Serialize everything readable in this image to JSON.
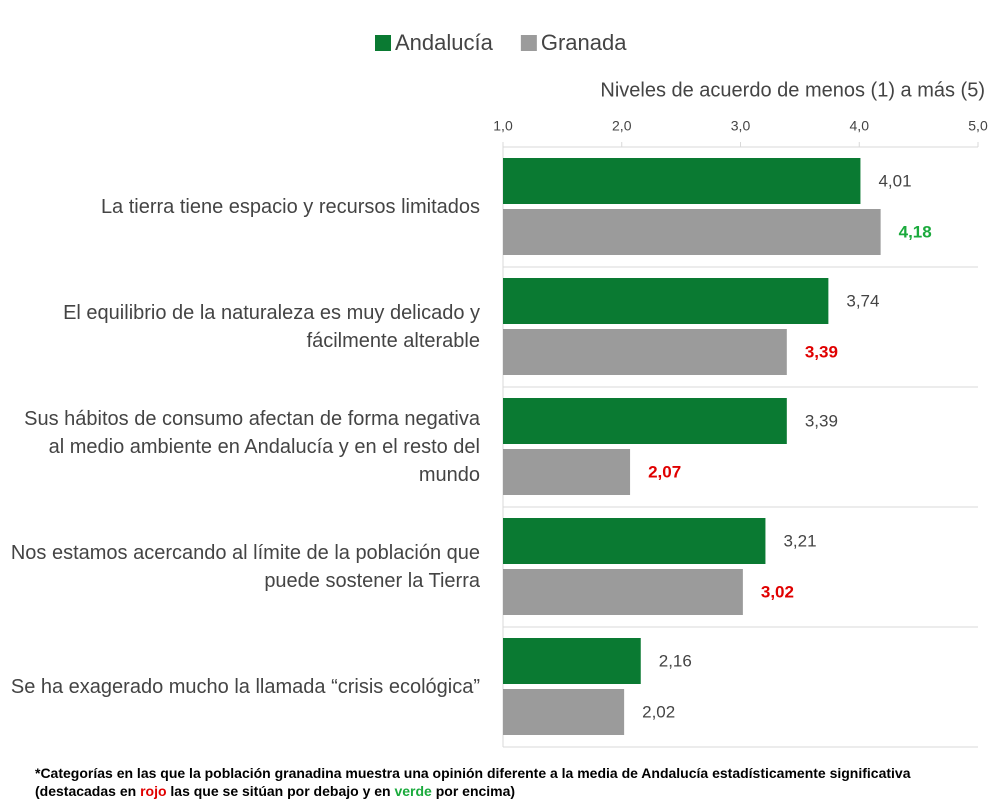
{
  "chart_data": {
    "type": "bar",
    "orientation": "horizontal",
    "x_label": "Niveles de acuerdo de menos (1) a más (5)",
    "categories": [
      "La tierra tiene espacio y recursos limitados",
      "El equilibrio de la naturaleza es muy delicado y fácilmente alterable",
      "Sus hábitos de consumo afectan de forma negativa al medio ambiente en Andalucía y en el resto del mundo",
      "Nos estamos acercando al límite de la población que puede sostener la Tierra",
      "Se ha exagerado mucho la llamada “crisis ecológica”"
    ],
    "series": [
      {
        "name": "Andalucía",
        "color": "#0a7a32",
        "values": [
          4.01,
          3.74,
          3.39,
          3.21,
          2.16
        ],
        "value_labels": [
          "4,01",
          "3,74",
          "3,39",
          "3,21",
          "2,16"
        ],
        "label_colors": [
          "#444444",
          "#444444",
          "#444444",
          "#444444",
          "#444444"
        ]
      },
      {
        "name": "Granada",
        "color": "#9b9b9b",
        "values": [
          4.18,
          3.39,
          2.07,
          3.02,
          2.02
        ],
        "value_labels": [
          "4,18",
          "3,39",
          "2,07",
          "3,02",
          "2,02"
        ],
        "label_colors": [
          "#1aaa3c",
          "#e00000",
          "#e00000",
          "#e00000",
          "#444444"
        ]
      }
    ],
    "xlim": [
      1,
      5
    ],
    "xticks": [
      {
        "value": 1,
        "label": "1,0"
      },
      {
        "value": 2,
        "label": "2,0"
      },
      {
        "value": 3,
        "label": "3,0"
      },
      {
        "value": 4,
        "label": "4,0"
      },
      {
        "value": 5,
        "label": "5,0"
      }
    ],
    "legend": "top",
    "footnote": {
      "parts": [
        "*Categorías en las que la población granadina muestra una opinión diferente a la media de Andalucía estadísticamente significativa (destacadas en ",
        "rojo",
        " las que se sitúan por debajo y en ",
        "verde",
        " por encima)"
      ],
      "colors": [
        "#000000",
        "#e00000",
        "#000000",
        "#1aaa3c",
        "#000000"
      ]
    }
  }
}
